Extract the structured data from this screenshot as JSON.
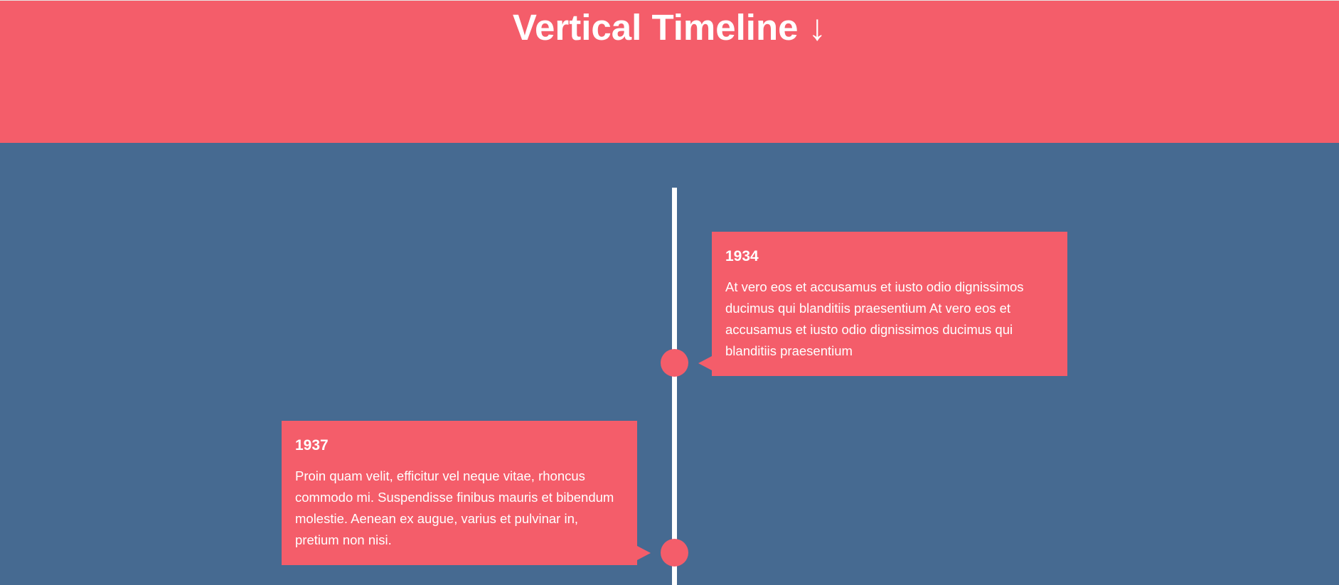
{
  "header": {
    "title": "Vertical Timeline",
    "arrow": "↓",
    "background": "#f45d6a"
  },
  "colors": {
    "page_background": "#466a91",
    "card_background": "#f45d6a",
    "line": "#ffffff",
    "text": "#ffffff"
  },
  "timeline": {
    "items": [
      {
        "year": "1934",
        "text": "At vero eos et accusamus et iusto odio dignissimos ducimus qui blanditiis praesentium At vero eos et accusamus et iusto odio dignissimos ducimus qui blanditiis praesentium",
        "side": "right"
      },
      {
        "year": "1937",
        "text": "Proin quam velit, efficitur vel neque vitae, rhoncus commodo mi. Suspendisse finibus mauris et bibendum molestie. Aenean ex augue, varius et pulvinar in, pretium non nisi.",
        "side": "left"
      }
    ]
  }
}
